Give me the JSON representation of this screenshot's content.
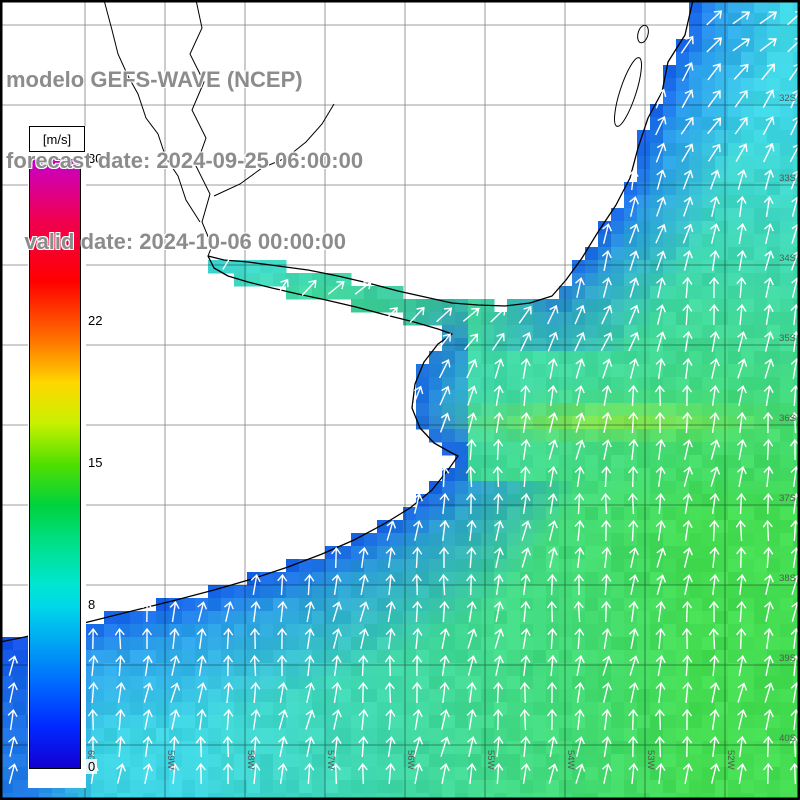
{
  "header": {
    "line1": "modelo GEFS-WAVE (NCEP)",
    "line2": "forecast date: 2024-09-25 06:00:00",
    "line3": "   valid date: 2024-10-06 00:00:00"
  },
  "colorbar": {
    "unit_label": "[m/s]",
    "min": 0,
    "max": 30,
    "ticks": [
      30,
      22,
      15,
      8,
      0
    ],
    "stops": [
      {
        "v": 30,
        "c": "#C800C8"
      },
      {
        "v": 27,
        "c": "#F00050"
      },
      {
        "v": 24,
        "c": "#FF0000"
      },
      {
        "v": 21,
        "c": "#FF7800"
      },
      {
        "v": 19,
        "c": "#FFD800"
      },
      {
        "v": 17,
        "c": "#C8F000"
      },
      {
        "v": 15,
        "c": "#50E000"
      },
      {
        "v": 13,
        "c": "#00D23C"
      },
      {
        "v": 11,
        "c": "#00E08C"
      },
      {
        "v": 9,
        "c": "#00E6D2"
      },
      {
        "v": 8,
        "c": "#00D8E8"
      },
      {
        "v": 6,
        "c": "#00A0F5"
      },
      {
        "v": 4,
        "c": "#0064FF"
      },
      {
        "v": 2,
        "c": "#0028FF"
      },
      {
        "v": 0,
        "c": "#1400D2"
      }
    ]
  },
  "map": {
    "lat_labels": [
      "32S",
      "33S",
      "34S",
      "35S",
      "36S",
      "37S",
      "38S",
      "39S",
      "40S"
    ],
    "lon_labels": [
      "60W",
      "59W",
      "58W",
      "57W",
      "56W",
      "55W",
      "54W",
      "53W",
      "52W"
    ],
    "palette": {
      "cyan": "#3ED6E4",
      "green": "#44DC50",
      "coastal_blue": "#1E78F0",
      "deep_blue": "#0A3CE6",
      "estuary_green": "#48E064",
      "streak_green": "#96E83C",
      "arrow": "#FFFFFF",
      "coastline": "#000000",
      "grid_line": "#000000",
      "label_gray": "#555555",
      "title_gray": "#8C8C8C"
    }
  }
}
